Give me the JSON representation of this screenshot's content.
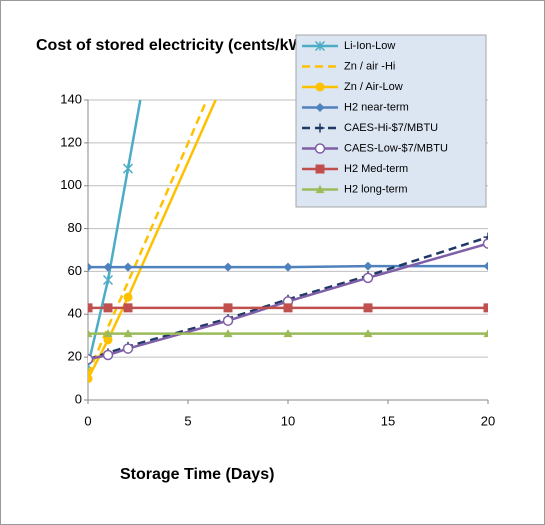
{
  "chart_data": {
    "type": "line",
    "title": "Cost of stored electricity (cents/kWh)",
    "x_label": "Storage Time (Days)",
    "xlim": [
      0,
      20
    ],
    "xticks": [
      0,
      5,
      10,
      15,
      20
    ],
    "ylim": [
      0,
      140
    ],
    "yticks": [
      0,
      20,
      40,
      60,
      80,
      100,
      120,
      140
    ],
    "grid": true,
    "legend": "upper right",
    "series": [
      {
        "name": "Li-Ion-Low",
        "color": "#4bacc6",
        "dash": false,
        "marker": "star",
        "x": [
          0,
          1,
          2,
          3
        ],
        "values": [
          16,
          56,
          108,
          160
        ]
      },
      {
        "name": "Zn / air -Hi",
        "color": "#ffc000",
        "dash": true,
        "marker": "none",
        "x": [
          0,
          1,
          2,
          7
        ],
        "values": [
          12,
          34,
          55,
          163
        ]
      },
      {
        "name": "Zn / Air-Low",
        "color": "#ffc000",
        "dash": false,
        "marker": "circle",
        "x": [
          0,
          1,
          2,
          7
        ],
        "values": [
          10,
          28,
          48,
          153
        ]
      },
      {
        "name": "H2 near-term",
        "color": "#4f81bd",
        "dash": false,
        "marker": "diamond",
        "x": [
          0,
          1,
          2,
          7,
          10,
          14,
          20
        ],
        "values": [
          62,
          62,
          62,
          62,
          62,
          62.5,
          62.5
        ]
      },
      {
        "name": "CAES-Hi-$7/MBTU",
        "color": "#1f3864",
        "dash": true,
        "marker": "plus",
        "x": [
          0,
          1,
          2,
          7,
          10,
          14,
          20
        ],
        "values": [
          19,
          22,
          25,
          38,
          47,
          58,
          76
        ]
      },
      {
        "name": "CAES-Low-$7/MBTU",
        "color": "#7f5fa8",
        "dash": false,
        "marker": "open-circle",
        "x": [
          0,
          1,
          2,
          7,
          10,
          14,
          20
        ],
        "values": [
          19,
          21,
          24,
          37,
          46,
          57,
          73
        ]
      },
      {
        "name": "H2 Med-term",
        "color": "#c0504d",
        "dash": false,
        "marker": "square",
        "x": [
          0,
          1,
          2,
          7,
          10,
          14,
          20
        ],
        "values": [
          43,
          43,
          43,
          43,
          43,
          43,
          43
        ]
      },
      {
        "name": "H2 long-term",
        "color": "#9bbb59",
        "dash": false,
        "marker": "triangle",
        "x": [
          0,
          1,
          2,
          7,
          10,
          14,
          20
        ],
        "values": [
          31,
          31,
          31,
          31,
          31,
          31,
          31
        ]
      }
    ]
  }
}
